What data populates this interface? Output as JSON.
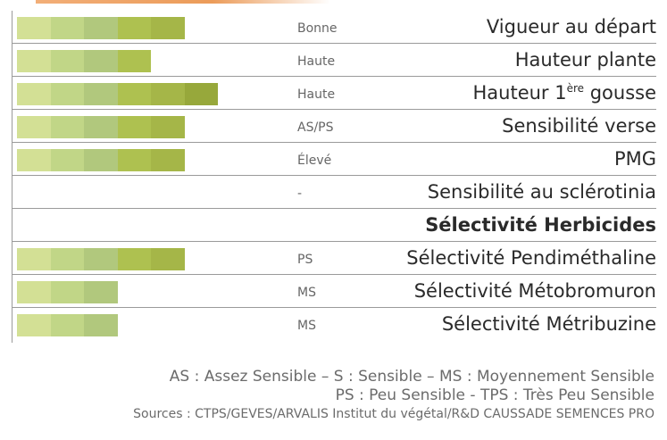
{
  "colors": {
    "accent_top": "#e88a3c",
    "bar_shades": [
      "#d3e095",
      "#c1d687",
      "#b1c87d",
      "#aec150",
      "#a5b648",
      "#97a83b"
    ],
    "rule": "#9a9a9a"
  },
  "rows": [
    {
      "label": "Vigueur au départ",
      "value": "Bonne",
      "level": 5,
      "bold": false
    },
    {
      "label": "Hauteur plante",
      "value": "Haute",
      "level": 4,
      "bold": false
    },
    {
      "label_main": "Hauteur 1",
      "label_sup": "ère",
      "label_tail": " gousse",
      "value": "Haute",
      "level": 6,
      "bold": false
    },
    {
      "label": "Sensibilité verse",
      "value": "AS/PS",
      "level": 5,
      "bold": false
    },
    {
      "label": "PMG",
      "value": "Élevé",
      "level": 5,
      "bold": false
    },
    {
      "label": "Sensibilité au sclérotinia",
      "value": "-",
      "level": 0,
      "bold": false
    },
    {
      "label": "Sélectivité Herbicides",
      "value": "",
      "level": 0,
      "bold": true
    },
    {
      "label": "Sélectivité Pendiméthaline",
      "value": "PS",
      "level": 5,
      "bold": false
    },
    {
      "label": "Sélectivité Métobromuron",
      "value": "MS",
      "level": 3,
      "bold": false
    },
    {
      "label": "Sélectivité Métribuzine",
      "value": "MS",
      "level": 3,
      "bold": false
    }
  ],
  "legend": {
    "line1": "AS : Assez Sensible –  S : Sensible – MS : Moyennement Sensible",
    "line2": "PS : Peu Sensible - TPS : Très Peu Sensible",
    "line3": "Sources : CTPS/GEVES/ARVALIS Institut du végétal/R&D CAUSSADE SEMENCES PRO"
  }
}
